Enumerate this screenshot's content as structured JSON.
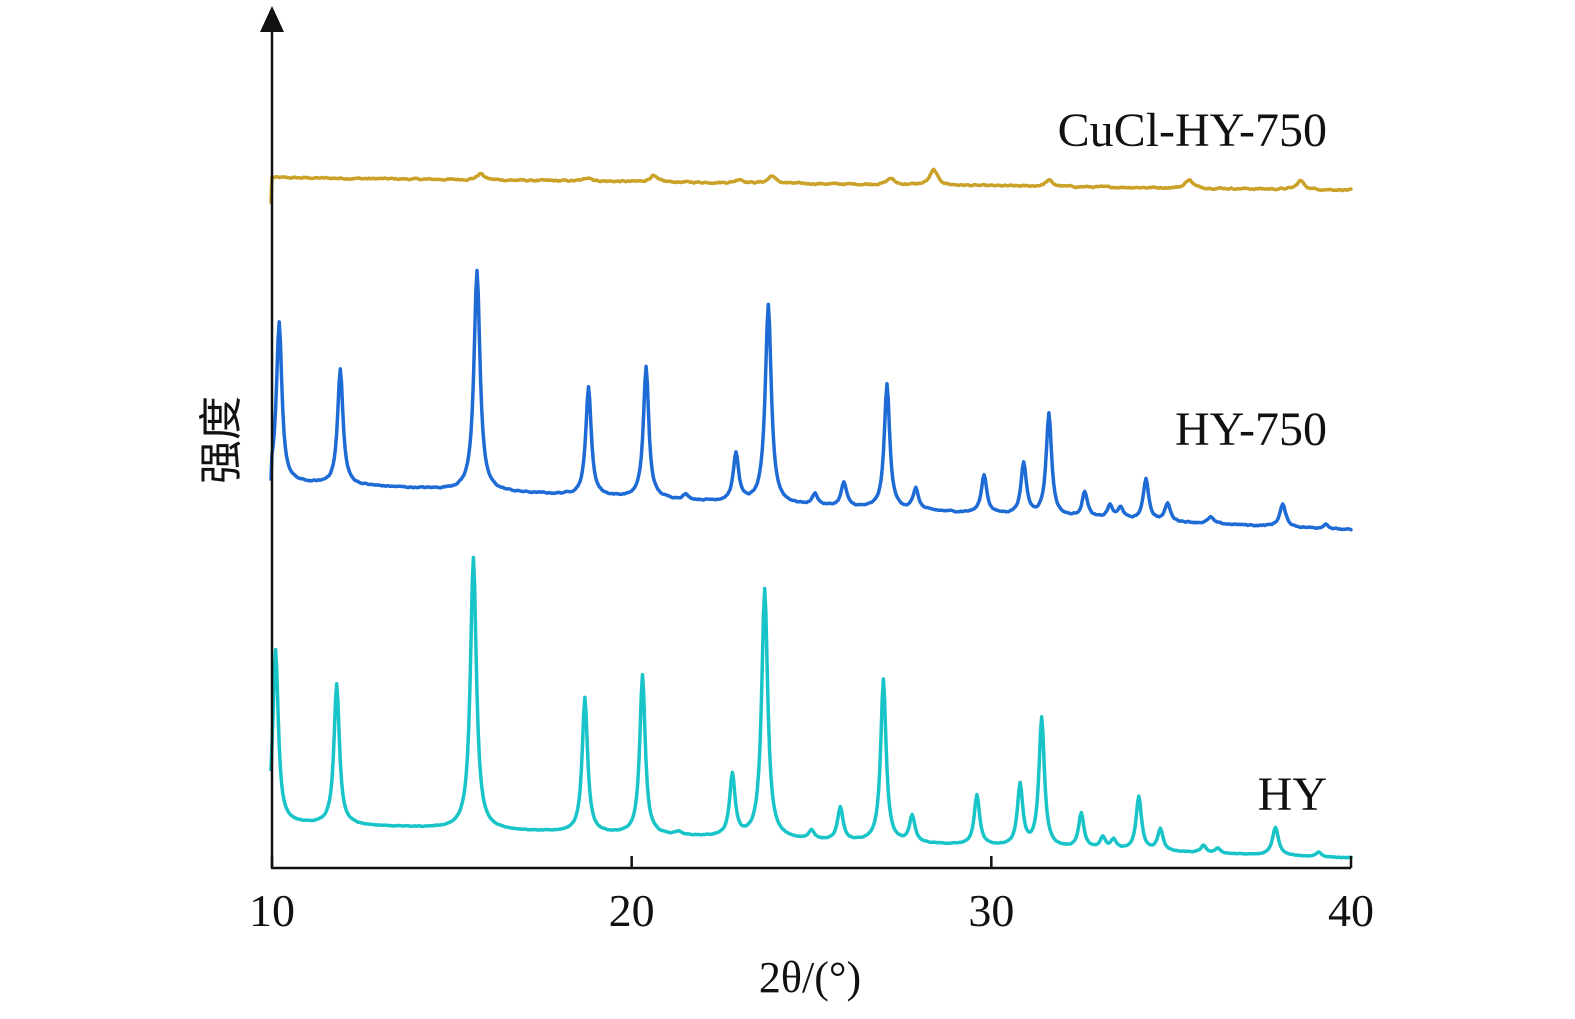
{
  "chart_data": {
    "type": "line",
    "xlabel": "2θ/(°)",
    "ylabel": "强度",
    "xlim": [
      10,
      40
    ],
    "x_ticks": [
      "10",
      "20",
      "30",
      "40"
    ],
    "y_ticks_shown": false,
    "grid": false,
    "legend": "none (series labels placed at right above each trace)",
    "series": [
      {
        "name": "CuCl-HY-750",
        "color": "#C9A227",
        "baseline_start": 0.1,
        "baseline_end": 0.0,
        "noise": 0.012,
        "peaks": [
          {
            "x": 15.8,
            "h": 0.05,
            "w": 0.12
          },
          {
            "x": 18.8,
            "h": 0.03,
            "w": 0.12
          },
          {
            "x": 20.6,
            "h": 0.05,
            "w": 0.12
          },
          {
            "x": 23.0,
            "h": 0.03,
            "w": 0.12
          },
          {
            "x": 23.9,
            "h": 0.06,
            "w": 0.12
          },
          {
            "x": 27.2,
            "h": 0.05,
            "w": 0.12
          },
          {
            "x": 28.4,
            "h": 0.12,
            "w": 0.13
          },
          {
            "x": 31.6,
            "h": 0.05,
            "w": 0.12
          },
          {
            "x": 35.5,
            "h": 0.07,
            "w": 0.12
          },
          {
            "x": 38.6,
            "h": 0.07,
            "w": 0.12
          }
        ]
      },
      {
        "name": "HY-750",
        "color": "#1E6BD6",
        "baseline_start": 0.3,
        "baseline_end": 0.0,
        "noise": 0.008,
        "peaks": [
          {
            "x": 10.2,
            "h": 1.0,
            "w": 0.09
          },
          {
            "x": 11.9,
            "h": 0.72,
            "w": 0.09
          },
          {
            "x": 15.7,
            "h": 1.38,
            "w": 0.1
          },
          {
            "x": 18.8,
            "h": 0.68,
            "w": 0.09
          },
          {
            "x": 20.4,
            "h": 0.82,
            "w": 0.09
          },
          {
            "x": 21.5,
            "h": 0.03,
            "w": 0.09
          },
          {
            "x": 22.9,
            "h": 0.3,
            "w": 0.09
          },
          {
            "x": 23.8,
            "h": 1.24,
            "w": 0.1
          },
          {
            "x": 25.1,
            "h": 0.07,
            "w": 0.09
          },
          {
            "x": 25.9,
            "h": 0.15,
            "w": 0.09
          },
          {
            "x": 27.1,
            "h": 0.78,
            "w": 0.09
          },
          {
            "x": 27.9,
            "h": 0.13,
            "w": 0.09
          },
          {
            "x": 29.8,
            "h": 0.24,
            "w": 0.09
          },
          {
            "x": 30.9,
            "h": 0.32,
            "w": 0.09
          },
          {
            "x": 31.6,
            "h": 0.64,
            "w": 0.09
          },
          {
            "x": 32.6,
            "h": 0.16,
            "w": 0.09
          },
          {
            "x": 33.3,
            "h": 0.08,
            "w": 0.09
          },
          {
            "x": 33.6,
            "h": 0.07,
            "w": 0.09
          },
          {
            "x": 34.3,
            "h": 0.26,
            "w": 0.09
          },
          {
            "x": 34.9,
            "h": 0.11,
            "w": 0.09
          },
          {
            "x": 36.1,
            "h": 0.04,
            "w": 0.09
          },
          {
            "x": 38.1,
            "h": 0.14,
            "w": 0.1
          },
          {
            "x": 39.3,
            "h": 0.03,
            "w": 0.09
          }
        ]
      },
      {
        "name": "HY",
        "color": "#18C4C8",
        "baseline_start": 0.3,
        "baseline_end": 0.0,
        "noise": 0.006,
        "peaks": [
          {
            "x": 10.1,
            "h": 1.48,
            "w": 0.09
          },
          {
            "x": 11.8,
            "h": 1.2,
            "w": 0.09
          },
          {
            "x": 15.6,
            "h": 2.32,
            "w": 0.1
          },
          {
            "x": 18.7,
            "h": 1.15,
            "w": 0.09
          },
          {
            "x": 20.3,
            "h": 1.36,
            "w": 0.09
          },
          {
            "x": 21.3,
            "h": 0.03,
            "w": 0.09
          },
          {
            "x": 22.8,
            "h": 0.53,
            "w": 0.09
          },
          {
            "x": 23.7,
            "h": 2.13,
            "w": 0.1
          },
          {
            "x": 25.0,
            "h": 0.07,
            "w": 0.09
          },
          {
            "x": 25.8,
            "h": 0.28,
            "w": 0.09
          },
          {
            "x": 27.0,
            "h": 1.39,
            "w": 0.09
          },
          {
            "x": 27.8,
            "h": 0.23,
            "w": 0.09
          },
          {
            "x": 29.6,
            "h": 0.43,
            "w": 0.09
          },
          {
            "x": 30.8,
            "h": 0.52,
            "w": 0.09
          },
          {
            "x": 31.4,
            "h": 1.1,
            "w": 0.09
          },
          {
            "x": 32.5,
            "h": 0.3,
            "w": 0.09
          },
          {
            "x": 33.1,
            "h": 0.1,
            "w": 0.09
          },
          {
            "x": 33.4,
            "h": 0.08,
            "w": 0.09
          },
          {
            "x": 34.1,
            "h": 0.46,
            "w": 0.09
          },
          {
            "x": 34.7,
            "h": 0.19,
            "w": 0.09
          },
          {
            "x": 35.9,
            "h": 0.06,
            "w": 0.09
          },
          {
            "x": 36.3,
            "h": 0.04,
            "w": 0.09
          },
          {
            "x": 37.9,
            "h": 0.24,
            "w": 0.1
          },
          {
            "x": 39.1,
            "h": 0.04,
            "w": 0.09
          }
        ]
      }
    ]
  }
}
